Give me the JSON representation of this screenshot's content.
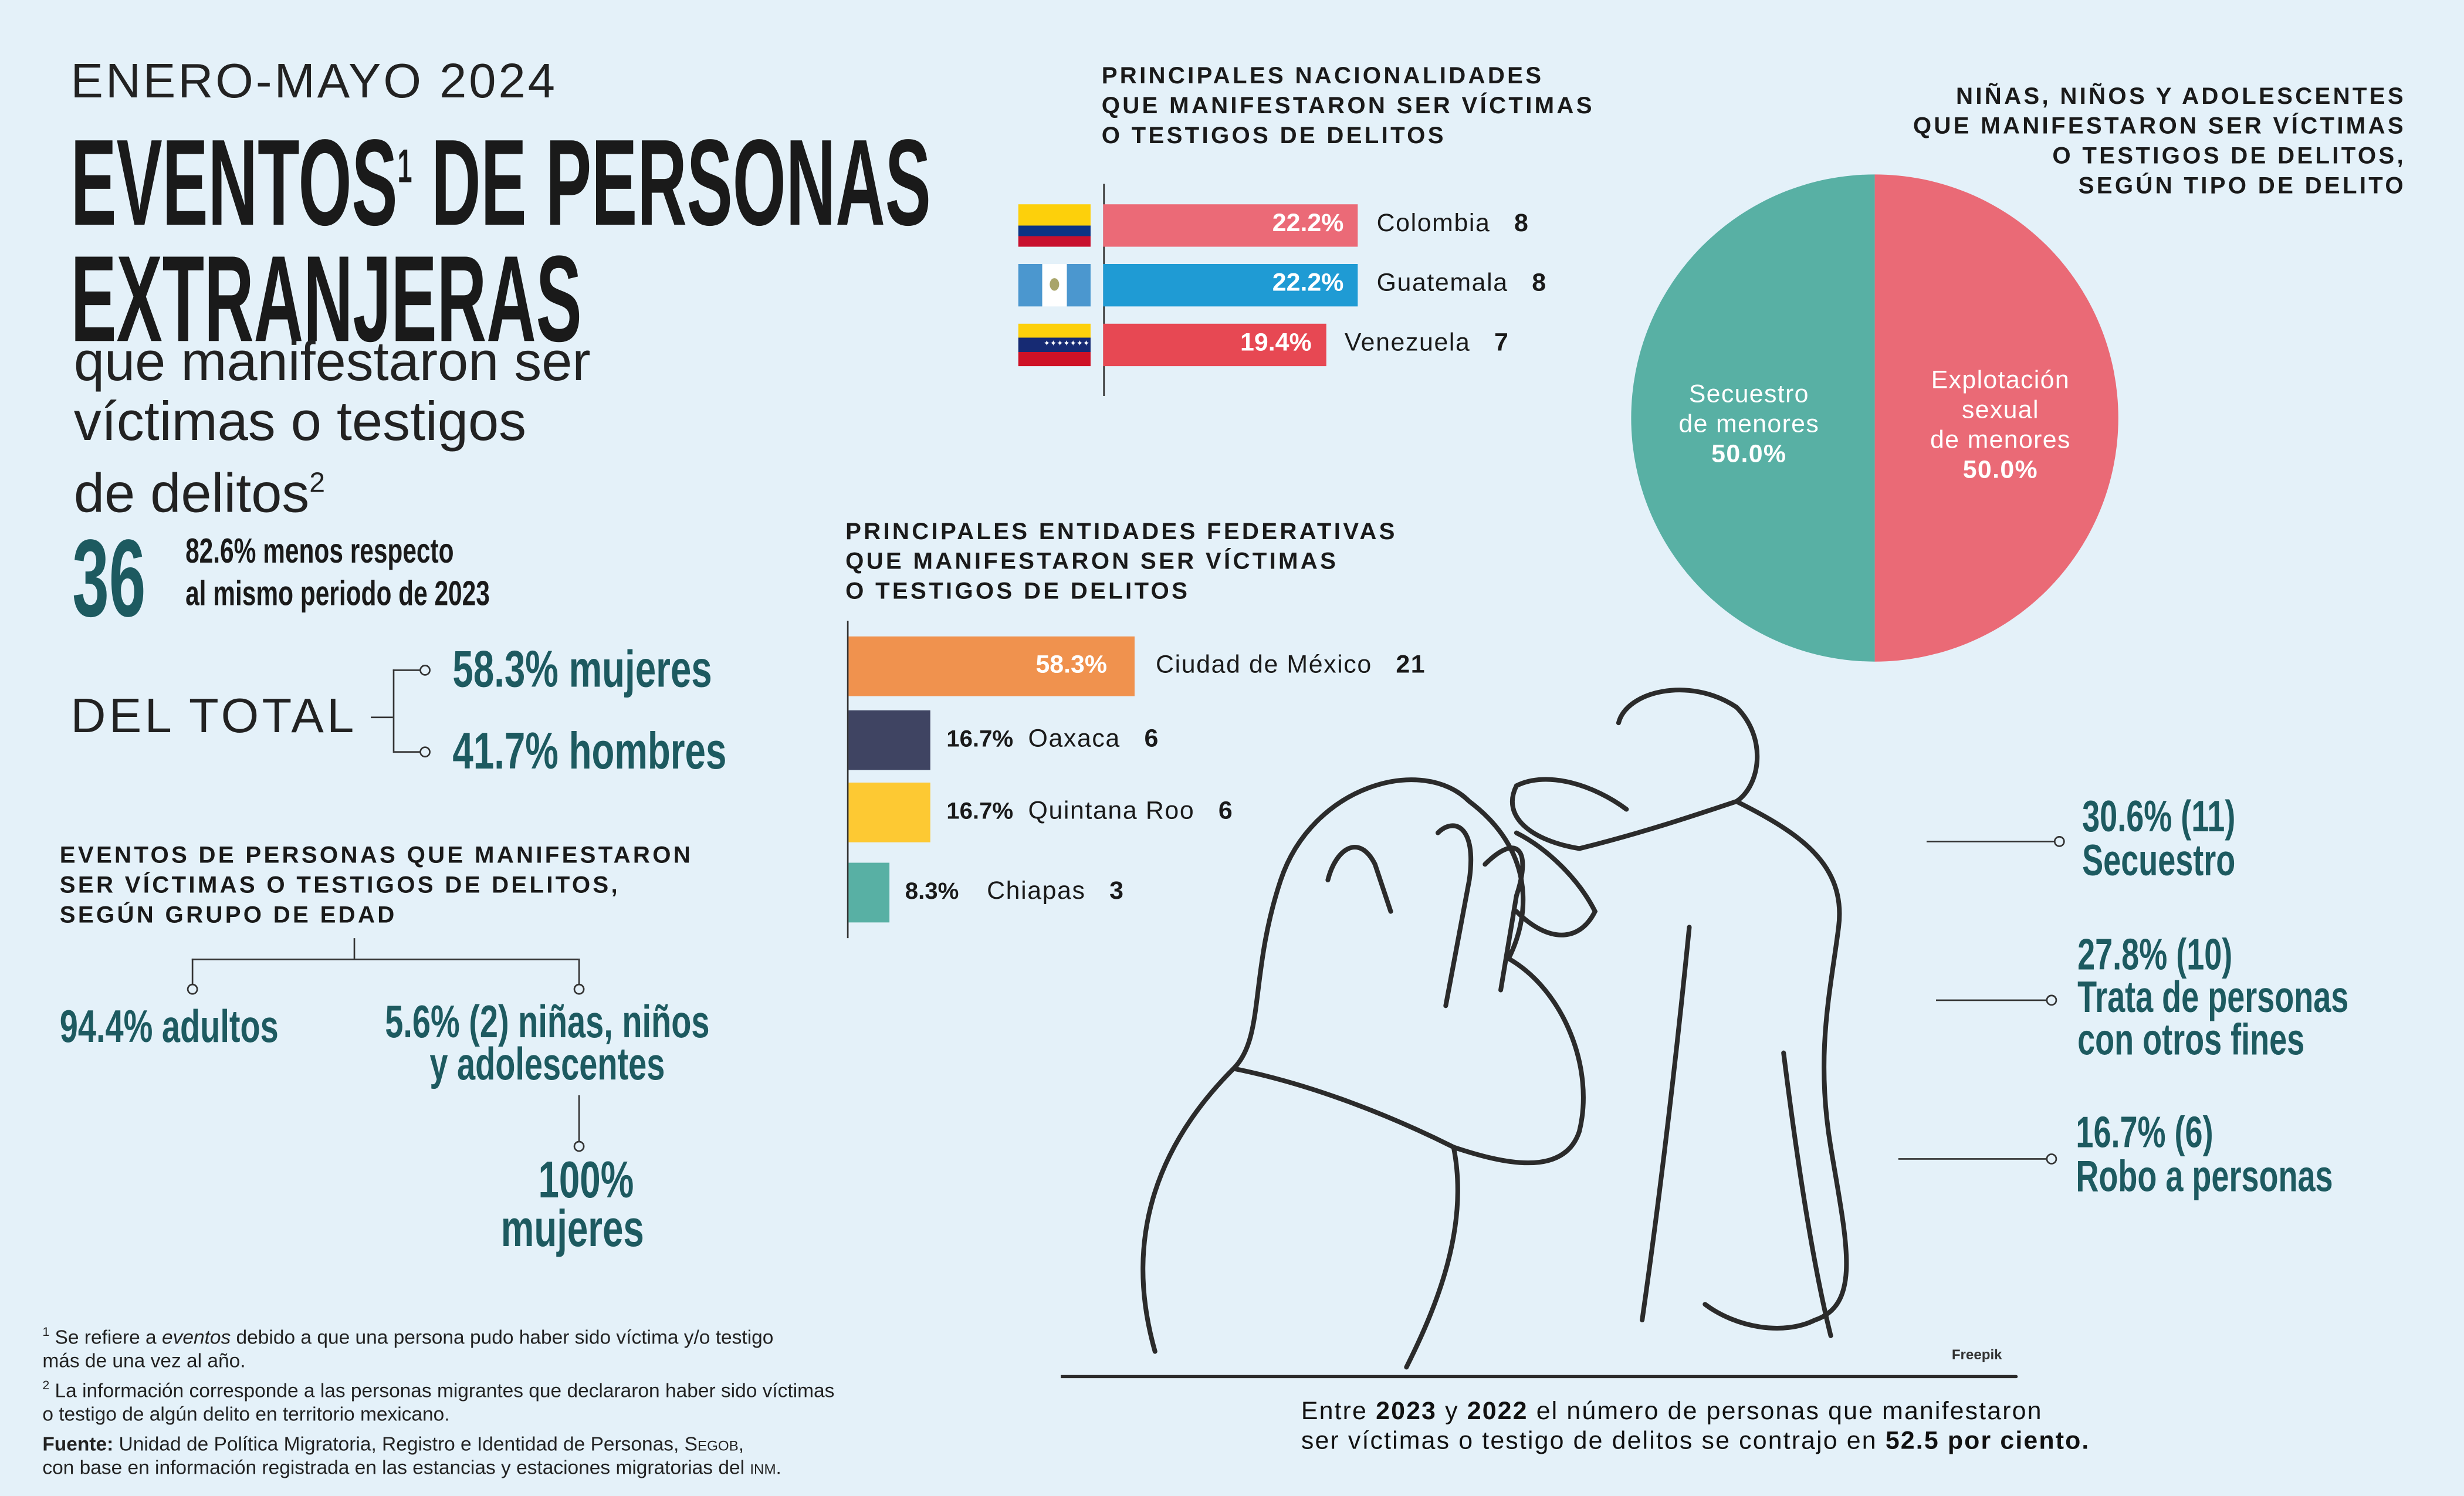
{
  "header": {
    "period": "ENERO-MAYO 2024",
    "title_line1": "EVENTOS",
    "title_sup": "1",
    "title_line1b": " DE PERSONAS",
    "title_line2": "EXTRANJERAS",
    "subtitle_line1": "que manifestaron ser",
    "subtitle_line2": "víctimas o testigos",
    "subtitle_line3": "de delitos",
    "subtitle_sup": "2"
  },
  "total": {
    "value": "36",
    "change_line1": "82.6% menos respecto",
    "change_line2": "al mismo periodo de 2023"
  },
  "sex": {
    "label": "DEL TOTAL",
    "women": "58.3% mujeres",
    "men": "41.7% hombres",
    "women_pct": 58.3,
    "men_pct": 41.7
  },
  "age": {
    "title": [
      "EVENTOS DE PERSONAS QUE MANIFESTARON",
      "SER VÍCTIMAS O TESTIGOS DE DELITOS,",
      "SEGÚN GRUPO DE EDAD"
    ],
    "adults": "94.4% adultos",
    "minors_line1": "5.6% (2) niñas, niños",
    "minors_line2": "y adolescentes",
    "minors_women_line1": "100%",
    "minors_women_line2": "mujeres"
  },
  "nationalities": {
    "title": [
      "PRINCIPALES NACIONALIDADES",
      "QUE MANIFESTARON SER VÍCTIMAS",
      "O TESTIGOS DE DELITOS"
    ],
    "items": [
      {
        "country": "Colombia",
        "pct": 22.2,
        "pct_label": "22.2%",
        "count": "8",
        "color": "#eb6a77",
        "flag": "colombia-flag"
      },
      {
        "country": "Guatemala",
        "pct": 22.2,
        "pct_label": "22.2%",
        "count": "8",
        "color": "#1f9bd4",
        "flag": "guatemala-flag"
      },
      {
        "country": "Venezuela",
        "pct": 19.4,
        "pct_label": "19.4%",
        "count": "7",
        "color": "#e74853",
        "flag": "venezuela-flag"
      }
    ]
  },
  "minors_crime": {
    "title": [
      "NIÑAS, NIÑOS Y ADOLESCENTES",
      "QUE MANIFESTARON SER VÍCTIMAS",
      "O TESTIGOS DE DELITOS,",
      "SEGÚN TIPO DE DELITO"
    ],
    "slices": [
      {
        "label_lines": [
          "Explotación",
          "sexual",
          "de menores"
        ],
        "pct": 50.0,
        "pct_label": "50.0%",
        "color": "#ea6a76"
      },
      {
        "label_lines": [
          "Secuestro",
          "de menores"
        ],
        "pct": 50.0,
        "pct_label": "50.0%",
        "color": "#58b0a4"
      }
    ]
  },
  "states": {
    "title": [
      "PRINCIPALES ENTIDADES FEDERATIVAS",
      "QUE MANIFESTARON SER VÍCTIMAS",
      "O TESTIGOS DE DELITOS"
    ],
    "items": [
      {
        "state": "Ciudad de México",
        "pct": 58.3,
        "pct_label": "58.3%",
        "count": "21",
        "color": "#f0924e"
      },
      {
        "state": "Oaxaca",
        "pct": 16.7,
        "pct_label": "16.7%",
        "count": "6",
        "color": "#3f4462"
      },
      {
        "state": "Quintana Roo",
        "pct": 16.7,
        "pct_label": "16.7%",
        "count": "6",
        "color": "#fdc933"
      },
      {
        "state": "Chiapas",
        "pct": 8.3,
        "pct_label": "8.3%",
        "count": "3",
        "color": "#58b0a4"
      }
    ]
  },
  "crimes": [
    {
      "line1": "30.6% (11)",
      "line2": "Secuestro"
    },
    {
      "line1": "27.8% (10)",
      "line2": "Trata de personas",
      "line3": "con otros fines"
    },
    {
      "line1": "16.7% (6)",
      "line2": "Robo a personas"
    }
  ],
  "credit": "Freepik",
  "summary": {
    "l1a": "Entre ",
    "l1b": "2023",
    "l1c": " y ",
    "l1d": "2022",
    "l1e": " el número de personas que manifestaron",
    "l2a": "ser víctimas o testigo de delitos se contrajo en ",
    "l2b": "52.5 por ciento."
  },
  "footnotes": {
    "n1_sup": "1",
    "n1a": " Se refiere a ",
    "n1_em": "eventos",
    "n1b": " debido a que una persona pudo haber sido víctima y/o testigo",
    "n1c": "más de una vez al año.",
    "n2_sup": "2",
    "n2a": " La información corresponde a las personas migrantes que declararon haber sido víctimas",
    "n2b": "o testigo de algún delito en territorio mexicano.",
    "source_label": "Fuente:",
    "source_a": " Unidad de Política Migratoria, Registro e Identidad de Personas, ",
    "source_segob": "Segob",
    "source_b": ",",
    "source_c": "con base en información registrada en las estancias y estaciones migratorias del ",
    "source_inm": "inm",
    "source_d": "."
  }
}
